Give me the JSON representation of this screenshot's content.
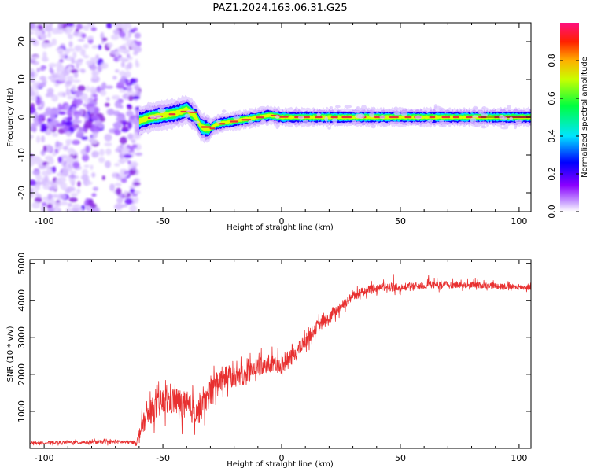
{
  "title": "PAZ1.2024.163.06.31.G25",
  "colors": {
    "snr_line": "#e83030",
    "noise": "#8a2be2",
    "track_core": "#e8323c"
  },
  "chart_data": [
    {
      "type": "heatmap",
      "xlabel": "Height of straight line (km)",
      "ylabel": "Frequency (Hz)",
      "xlim": [
        -106,
        105
      ],
      "ylim": [
        -25,
        25
      ],
      "xticks": [
        -100,
        -50,
        0,
        50,
        100
      ],
      "yticks": [
        -20,
        -10,
        0,
        10,
        20
      ],
      "colorbar": {
        "label": "Normalized spectral amplitude",
        "range": [
          0,
          1
        ],
        "ticks": [
          "0.0",
          "0.2",
          "0.4",
          "0.6",
          "0.8"
        ],
        "colormap": [
          "#ffffff",
          "#8a00ff",
          "#0000ff",
          "#00e5ff",
          "#00ff40",
          "#c8ff00",
          "#ffb000",
          "#ff2000",
          "#ff1080"
        ]
      },
      "noise_region_km": [
        -106,
        -60
      ],
      "track": {
        "x": [
          -60,
          -55,
          -50,
          -45,
          -42,
          -40,
          -38,
          -36,
          -34,
          -32,
          -30,
          -28,
          -25,
          -20,
          -15,
          -10,
          -5,
          0,
          5,
          10,
          20,
          30,
          40,
          50,
          60,
          70,
          80,
          90,
          100,
          105
        ],
        "y": [
          -1,
          0,
          0.5,
          1,
          1.5,
          2,
          1,
          0,
          -2.5,
          -3,
          -3,
          -2,
          -1.5,
          -1,
          -0.5,
          0,
          0.5,
          0,
          0,
          0,
          0,
          0,
          0,
          0,
          0,
          0,
          0,
          0,
          0,
          0
        ]
      }
    },
    {
      "type": "line",
      "xlabel": "Height of straight line (km)",
      "ylabel": "SNR (10 * v/v)",
      "xlim": [
        -106,
        105
      ],
      "ylim": [
        0,
        5100
      ],
      "xticks": [
        -100,
        -50,
        0,
        50,
        100
      ],
      "yticks": [
        1000,
        2000,
        3000,
        4000,
        5000
      ],
      "series": [
        {
          "x": [
            -106,
            -80,
            -70,
            -61,
            -59,
            -55,
            -50,
            -45,
            -40,
            -35,
            -30,
            -25,
            -20,
            -15,
            -10,
            -5,
            0,
            5,
            10,
            15,
            20,
            25,
            30,
            35,
            40,
            50,
            60,
            70,
            80,
            90,
            100,
            105
          ],
          "values": [
            150,
            170,
            180,
            160,
            600,
            1000,
            1250,
            1300,
            1100,
            1000,
            1500,
            1900,
            1900,
            2000,
            2200,
            2300,
            2250,
            2500,
            2900,
            3300,
            3500,
            3850,
            4100,
            4250,
            4350,
            4350,
            4400,
            4420,
            4420,
            4400,
            4350,
            4350
          ],
          "noise": [
            40,
            60,
            60,
            60,
            300,
            420,
            450,
            480,
            500,
            450,
            450,
            400,
            350,
            320,
            300,
            300,
            280,
            260,
            240,
            220,
            200,
            180,
            160,
            150,
            140,
            130,
            130,
            120,
            110,
            100,
            90,
            90
          ]
        }
      ]
    }
  ]
}
